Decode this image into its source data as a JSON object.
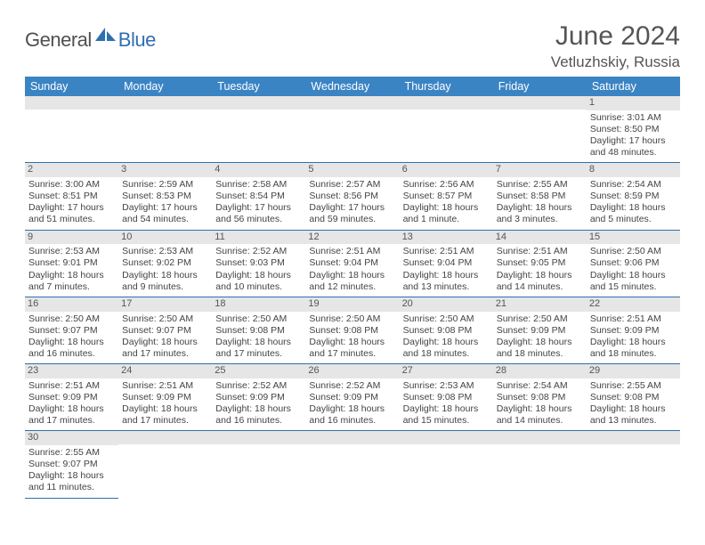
{
  "logo": {
    "general": "General",
    "blue": "Blue"
  },
  "title": "June 2024",
  "location": "Vetluzhskiy, Russia",
  "colors": {
    "header_bg": "#3b84c4",
    "border": "#2f6fb0",
    "daynum_bg": "#e6e6e6",
    "text": "#444444",
    "logo_gray": "#505050",
    "logo_blue": "#2f6fb0"
  },
  "typography": {
    "title_fontsize": 30,
    "location_fontsize": 17,
    "header_fontsize": 12.5,
    "cell_fontsize": 10.5
  },
  "day_headers": [
    "Sunday",
    "Monday",
    "Tuesday",
    "Wednesday",
    "Thursday",
    "Friday",
    "Saturday"
  ],
  "weeks": [
    [
      null,
      null,
      null,
      null,
      null,
      null,
      {
        "n": "1",
        "rise": "Sunrise: 3:01 AM",
        "set": "Sunset: 8:50 PM",
        "d1": "Daylight: 17 hours",
        "d2": "and 48 minutes."
      }
    ],
    [
      {
        "n": "2",
        "rise": "Sunrise: 3:00 AM",
        "set": "Sunset: 8:51 PM",
        "d1": "Daylight: 17 hours",
        "d2": "and 51 minutes."
      },
      {
        "n": "3",
        "rise": "Sunrise: 2:59 AM",
        "set": "Sunset: 8:53 PM",
        "d1": "Daylight: 17 hours",
        "d2": "and 54 minutes."
      },
      {
        "n": "4",
        "rise": "Sunrise: 2:58 AM",
        "set": "Sunset: 8:54 PM",
        "d1": "Daylight: 17 hours",
        "d2": "and 56 minutes."
      },
      {
        "n": "5",
        "rise": "Sunrise: 2:57 AM",
        "set": "Sunset: 8:56 PM",
        "d1": "Daylight: 17 hours",
        "d2": "and 59 minutes."
      },
      {
        "n": "6",
        "rise": "Sunrise: 2:56 AM",
        "set": "Sunset: 8:57 PM",
        "d1": "Daylight: 18 hours",
        "d2": "and 1 minute."
      },
      {
        "n": "7",
        "rise": "Sunrise: 2:55 AM",
        "set": "Sunset: 8:58 PM",
        "d1": "Daylight: 18 hours",
        "d2": "and 3 minutes."
      },
      {
        "n": "8",
        "rise": "Sunrise: 2:54 AM",
        "set": "Sunset: 8:59 PM",
        "d1": "Daylight: 18 hours",
        "d2": "and 5 minutes."
      }
    ],
    [
      {
        "n": "9",
        "rise": "Sunrise: 2:53 AM",
        "set": "Sunset: 9:01 PM",
        "d1": "Daylight: 18 hours",
        "d2": "and 7 minutes."
      },
      {
        "n": "10",
        "rise": "Sunrise: 2:53 AM",
        "set": "Sunset: 9:02 PM",
        "d1": "Daylight: 18 hours",
        "d2": "and 9 minutes."
      },
      {
        "n": "11",
        "rise": "Sunrise: 2:52 AM",
        "set": "Sunset: 9:03 PM",
        "d1": "Daylight: 18 hours",
        "d2": "and 10 minutes."
      },
      {
        "n": "12",
        "rise": "Sunrise: 2:51 AM",
        "set": "Sunset: 9:04 PM",
        "d1": "Daylight: 18 hours",
        "d2": "and 12 minutes."
      },
      {
        "n": "13",
        "rise": "Sunrise: 2:51 AM",
        "set": "Sunset: 9:04 PM",
        "d1": "Daylight: 18 hours",
        "d2": "and 13 minutes."
      },
      {
        "n": "14",
        "rise": "Sunrise: 2:51 AM",
        "set": "Sunset: 9:05 PM",
        "d1": "Daylight: 18 hours",
        "d2": "and 14 minutes."
      },
      {
        "n": "15",
        "rise": "Sunrise: 2:50 AM",
        "set": "Sunset: 9:06 PM",
        "d1": "Daylight: 18 hours",
        "d2": "and 15 minutes."
      }
    ],
    [
      {
        "n": "16",
        "rise": "Sunrise: 2:50 AM",
        "set": "Sunset: 9:07 PM",
        "d1": "Daylight: 18 hours",
        "d2": "and 16 minutes."
      },
      {
        "n": "17",
        "rise": "Sunrise: 2:50 AM",
        "set": "Sunset: 9:07 PM",
        "d1": "Daylight: 18 hours",
        "d2": "and 17 minutes."
      },
      {
        "n": "18",
        "rise": "Sunrise: 2:50 AM",
        "set": "Sunset: 9:08 PM",
        "d1": "Daylight: 18 hours",
        "d2": "and 17 minutes."
      },
      {
        "n": "19",
        "rise": "Sunrise: 2:50 AM",
        "set": "Sunset: 9:08 PM",
        "d1": "Daylight: 18 hours",
        "d2": "and 17 minutes."
      },
      {
        "n": "20",
        "rise": "Sunrise: 2:50 AM",
        "set": "Sunset: 9:08 PM",
        "d1": "Daylight: 18 hours",
        "d2": "and 18 minutes."
      },
      {
        "n": "21",
        "rise": "Sunrise: 2:50 AM",
        "set": "Sunset: 9:09 PM",
        "d1": "Daylight: 18 hours",
        "d2": "and 18 minutes."
      },
      {
        "n": "22",
        "rise": "Sunrise: 2:51 AM",
        "set": "Sunset: 9:09 PM",
        "d1": "Daylight: 18 hours",
        "d2": "and 18 minutes."
      }
    ],
    [
      {
        "n": "23",
        "rise": "Sunrise: 2:51 AM",
        "set": "Sunset: 9:09 PM",
        "d1": "Daylight: 18 hours",
        "d2": "and 17 minutes."
      },
      {
        "n": "24",
        "rise": "Sunrise: 2:51 AM",
        "set": "Sunset: 9:09 PM",
        "d1": "Daylight: 18 hours",
        "d2": "and 17 minutes."
      },
      {
        "n": "25",
        "rise": "Sunrise: 2:52 AM",
        "set": "Sunset: 9:09 PM",
        "d1": "Daylight: 18 hours",
        "d2": "and 16 minutes."
      },
      {
        "n": "26",
        "rise": "Sunrise: 2:52 AM",
        "set": "Sunset: 9:09 PM",
        "d1": "Daylight: 18 hours",
        "d2": "and 16 minutes."
      },
      {
        "n": "27",
        "rise": "Sunrise: 2:53 AM",
        "set": "Sunset: 9:08 PM",
        "d1": "Daylight: 18 hours",
        "d2": "and 15 minutes."
      },
      {
        "n": "28",
        "rise": "Sunrise: 2:54 AM",
        "set": "Sunset: 9:08 PM",
        "d1": "Daylight: 18 hours",
        "d2": "and 14 minutes."
      },
      {
        "n": "29",
        "rise": "Sunrise: 2:55 AM",
        "set": "Sunset: 9:08 PM",
        "d1": "Daylight: 18 hours",
        "d2": "and 13 minutes."
      }
    ],
    [
      {
        "n": "30",
        "rise": "Sunrise: 2:55 AM",
        "set": "Sunset: 9:07 PM",
        "d1": "Daylight: 18 hours",
        "d2": "and 11 minutes."
      },
      null,
      null,
      null,
      null,
      null,
      null
    ]
  ]
}
